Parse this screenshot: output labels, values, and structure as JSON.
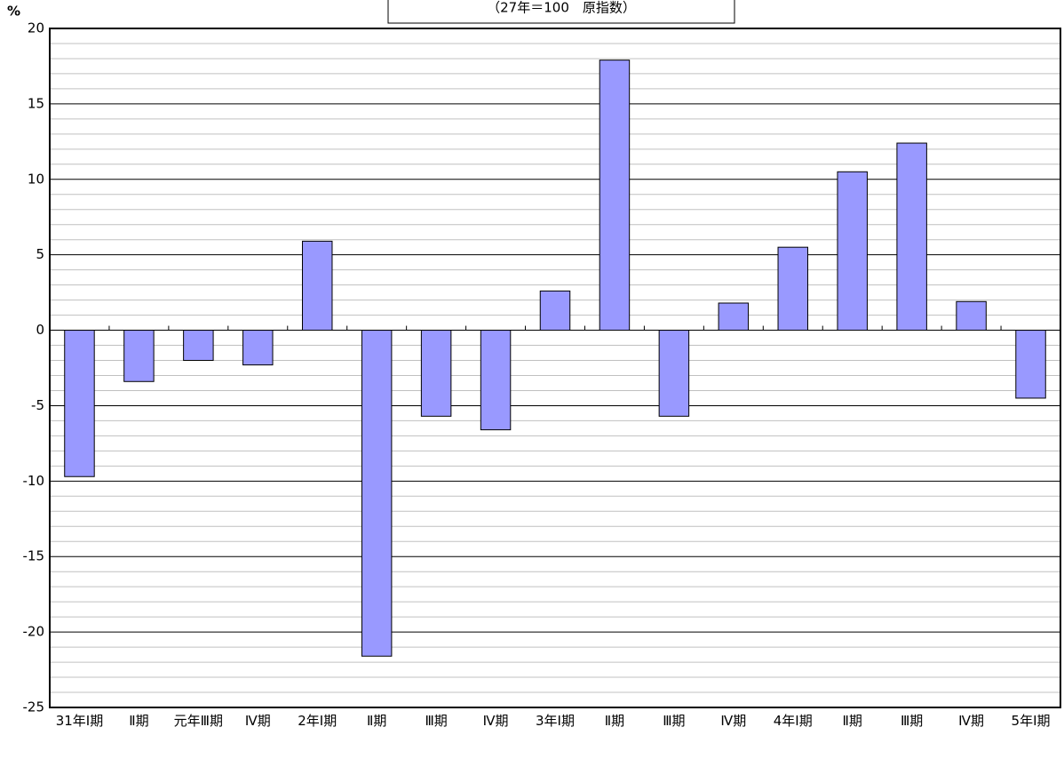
{
  "chart_data": {
    "type": "bar",
    "title": "（27年＝100　原指数）",
    "y_unit": "%",
    "categories": [
      "31年Ⅰ期",
      "Ⅱ期",
      "元年Ⅲ期",
      "Ⅳ期",
      "2年Ⅰ期",
      "Ⅱ期",
      "Ⅲ期",
      "Ⅳ期",
      "3年Ⅰ期",
      "Ⅱ期",
      "Ⅲ期",
      "Ⅳ期",
      "4年Ⅰ期",
      "Ⅱ期",
      "Ⅲ期",
      "Ⅳ期",
      "5年Ⅰ期"
    ],
    "values": [
      -9.7,
      -3.4,
      -2.0,
      -2.3,
      5.9,
      -21.6,
      -5.7,
      -6.6,
      2.6,
      17.9,
      -5.7,
      1.8,
      5.5,
      10.5,
      12.4,
      1.9,
      -4.5
    ],
    "color": "#9999ff",
    "ylim": [
      -25,
      20
    ],
    "yticks": [
      -25,
      -20,
      -15,
      -10,
      -5,
      0,
      5,
      10,
      15,
      20
    ],
    "grid": true,
    "minor_grid": true
  }
}
